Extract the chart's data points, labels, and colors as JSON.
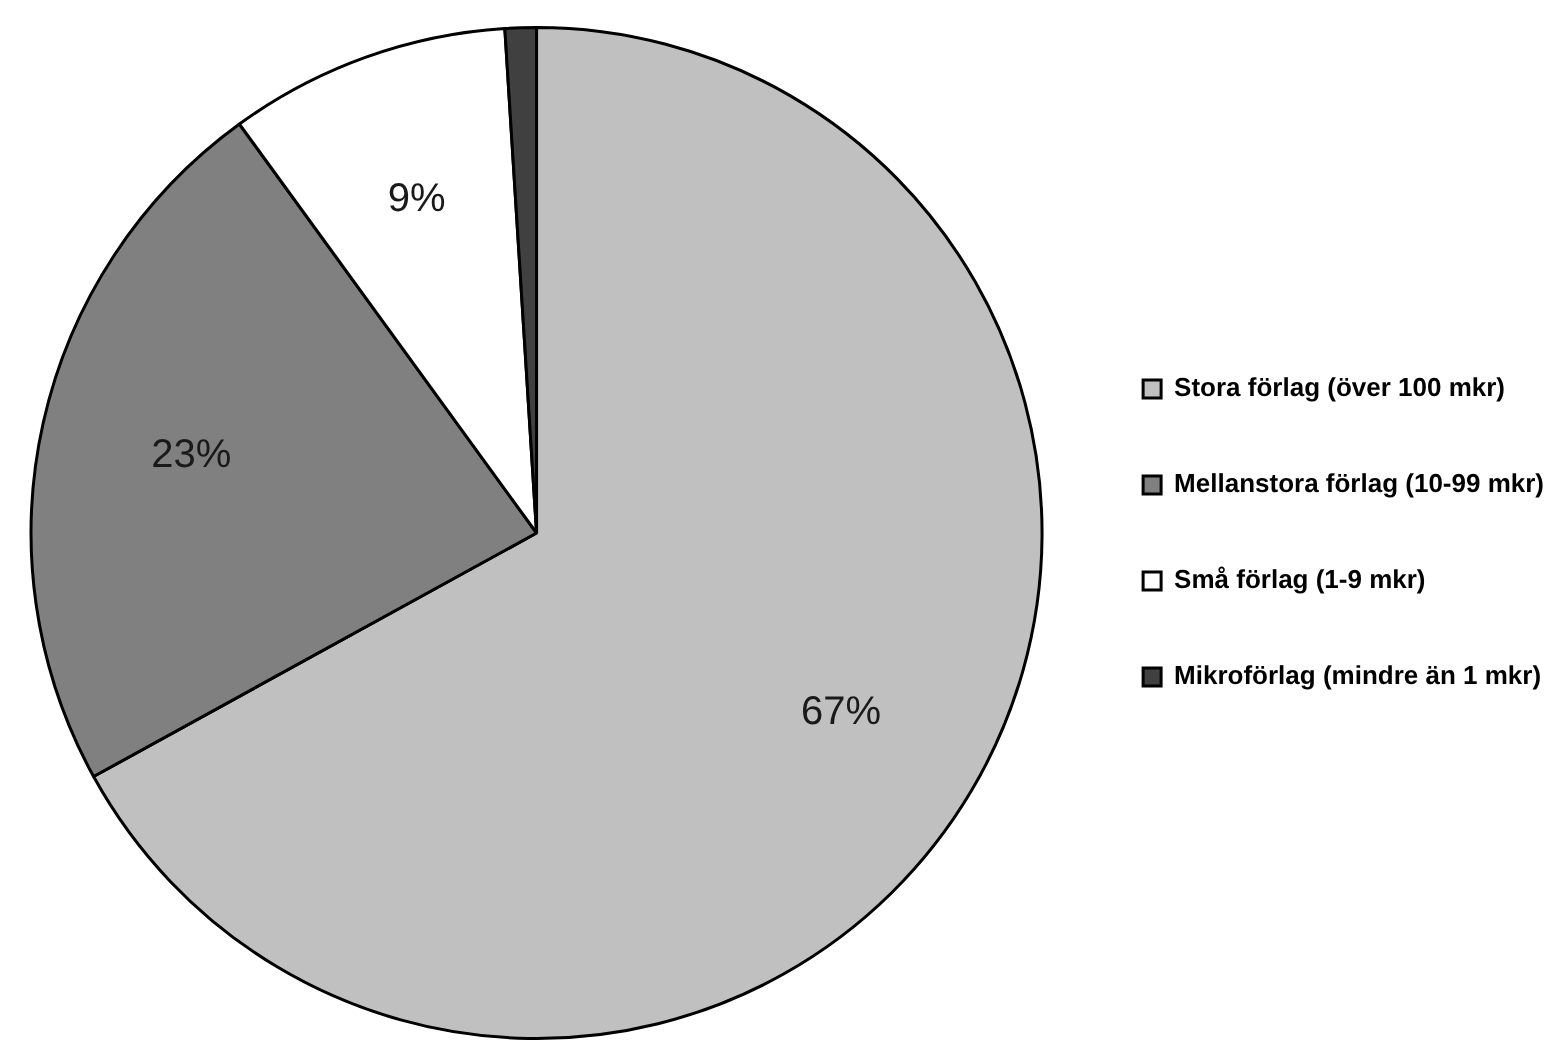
{
  "chart_data": {
    "type": "pie",
    "categories": [
      "Stora förlag (över 100 mkr)",
      "Mellanstora förlag (10-99 mkr)",
      "Små förlag (1-9 mkr)",
      "Mikroförlag (mindre än 1 mkr)"
    ],
    "values": [
      67,
      23,
      9,
      1
    ],
    "colors": [
      "#c0c0c0",
      "#808080",
      "#ffffff",
      "#404040"
    ],
    "value_labels": [
      "67%",
      "23%",
      "9%",
      null
    ],
    "legend": "right"
  }
}
